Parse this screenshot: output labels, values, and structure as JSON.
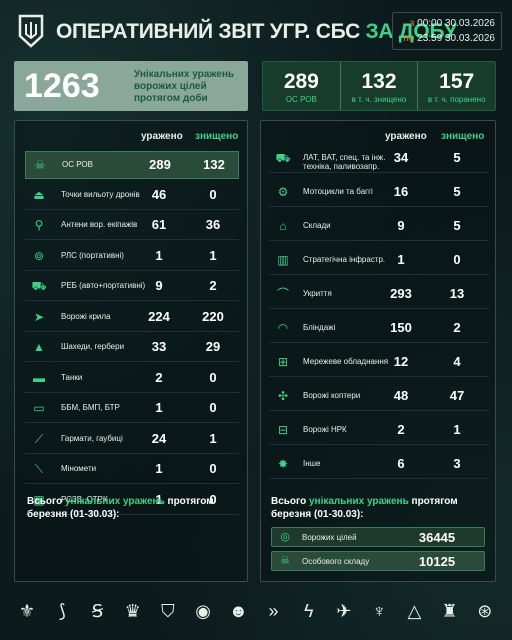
{
  "header": {
    "title_main": "ОПЕРАТИВНИЙ ЗВІТ УГР. СБС",
    "title_accent": "ЗА ДОБУ",
    "date_from_label": "з",
    "date_from": "00:00 30.03.2026",
    "date_to_label": "по",
    "date_to": "23:59 30.03.2026"
  },
  "summary": {
    "unique_hits": "1263",
    "unique_hits_desc": "Унікальних уражень ворожих цілей протягом доби",
    "personnel": [
      {
        "value": "289",
        "label": "ОС РОВ"
      },
      {
        "value": "132",
        "label": "в т. ч. знищено"
      },
      {
        "value": "157",
        "label": "в т. ч. поранено"
      }
    ]
  },
  "columns": {
    "hit": "уражено",
    "killed": "знищено"
  },
  "left_rows": [
    {
      "icon": "personnel-icon",
      "glyph": "☠",
      "name": "ОС РОВ",
      "hit": "289",
      "killed": "132"
    },
    {
      "icon": "drone-launch-icon",
      "glyph": "⏏",
      "name": "Точки вильоту дронів",
      "hit": "46",
      "killed": "0"
    },
    {
      "icon": "antenna-icon",
      "glyph": "⚲",
      "name": "Антени вор. екіпажів",
      "hit": "61",
      "killed": "36"
    },
    {
      "icon": "radio-station-icon",
      "glyph": "⊚",
      "name": "РЛС (портативні)",
      "hit": "1",
      "killed": "1"
    },
    {
      "icon": "ew-icon",
      "glyph": "⛟",
      "name": "РЕБ (авто+портативні)",
      "hit": "9",
      "killed": "2"
    },
    {
      "icon": "enemy-wing-icon",
      "glyph": "➤",
      "name": "Ворожі крила",
      "hit": "224",
      "killed": "220"
    },
    {
      "icon": "shahed-icon",
      "glyph": "▲",
      "name": "Шахеди, гербери",
      "hit": "33",
      "killed": "29"
    },
    {
      "icon": "tank-icon",
      "glyph": "▬",
      "name": "Танки",
      "hit": "2",
      "killed": "0"
    },
    {
      "icon": "apc-icon",
      "glyph": "▭",
      "name": "ББМ, БМП, БТР",
      "hit": "1",
      "killed": "0"
    },
    {
      "icon": "howitzer-icon",
      "glyph": "⟋",
      "name": "Гармати, гаубиці",
      "hit": "24",
      "killed": "1"
    },
    {
      "icon": "mortar-icon",
      "glyph": "⟍",
      "name": "Міномети",
      "hit": "1",
      "killed": "0"
    },
    {
      "icon": "mlrs-icon",
      "glyph": "▦",
      "name": "РСЗВ, ОТРК",
      "hit": "1",
      "killed": "0"
    }
  ],
  "right_rows": [
    {
      "icon": "truck-icon",
      "glyph": "⛟",
      "name": "ЛАТ, ВАТ, спец. та інж. техніка, паливозапр.",
      "hit": "34",
      "killed": "5"
    },
    {
      "icon": "motorcycle-icon",
      "glyph": "⚙",
      "name": "Мотоцикли та баггі",
      "hit": "16",
      "killed": "5"
    },
    {
      "icon": "warehouse-icon",
      "glyph": "⌂",
      "name": "Склади",
      "hit": "9",
      "killed": "5"
    },
    {
      "icon": "factory-icon",
      "glyph": "▥",
      "name": "Стратегічна інфрастр.",
      "hit": "1",
      "killed": "0"
    },
    {
      "icon": "shelter-icon",
      "glyph": "⌒",
      "name": "Укриття",
      "hit": "293",
      "killed": "13"
    },
    {
      "icon": "dugout-icon",
      "glyph": "◠",
      "name": "Бліндажі",
      "hit": "150",
      "killed": "2"
    },
    {
      "icon": "network-icon",
      "glyph": "⊞",
      "name": "Мережеве обладнання",
      "hit": "12",
      "killed": "4"
    },
    {
      "icon": "copter-icon",
      "glyph": "✣",
      "name": "Ворожі коптери",
      "hit": "48",
      "killed": "47"
    },
    {
      "icon": "ground-robot-icon",
      "glyph": "⊟",
      "name": "Ворожі НРК",
      "hit": "2",
      "killed": "1"
    },
    {
      "icon": "explosion-icon",
      "glyph": "✸",
      "name": "Інше",
      "hit": "6",
      "killed": "3"
    }
  ],
  "totals": {
    "title_a": "Всього",
    "title_accent": "унікальних уражень",
    "title_b": "протягом березня (01-30.03):",
    "rows": [
      {
        "icon": "target-icon",
        "glyph": "◎",
        "name": "Ворожих цілей",
        "value": "36445"
      },
      {
        "icon": "personnel-icon",
        "glyph": "☠",
        "name": "Особового складу",
        "value": "10125"
      }
    ]
  },
  "footer_badges": [
    {
      "icon": "trident-icon",
      "glyph": "⚜"
    },
    {
      "icon": "blade-icon",
      "glyph": "⟆"
    },
    {
      "icon": "s-emblem-icon",
      "glyph": "Ꞩ"
    },
    {
      "icon": "crown-icon",
      "glyph": "♛"
    },
    {
      "icon": "shield-ksr-icon",
      "glyph": "⛉"
    },
    {
      "icon": "round-emblem-icon",
      "glyph": "◉"
    },
    {
      "icon": "alien-icon",
      "glyph": "☻"
    },
    {
      "icon": "chevrons-icon",
      "glyph": "»"
    },
    {
      "icon": "lightning-icon",
      "glyph": "ϟ"
    },
    {
      "icon": "bird-icon",
      "glyph": "✈"
    },
    {
      "icon": "bat-wing-icon",
      "glyph": "♆"
    },
    {
      "icon": "triangle-emblem-icon",
      "glyph": "△"
    },
    {
      "icon": "crest-icon",
      "glyph": "♜"
    },
    {
      "icon": "round-crest-icon",
      "glyph": "⊛"
    }
  ]
}
